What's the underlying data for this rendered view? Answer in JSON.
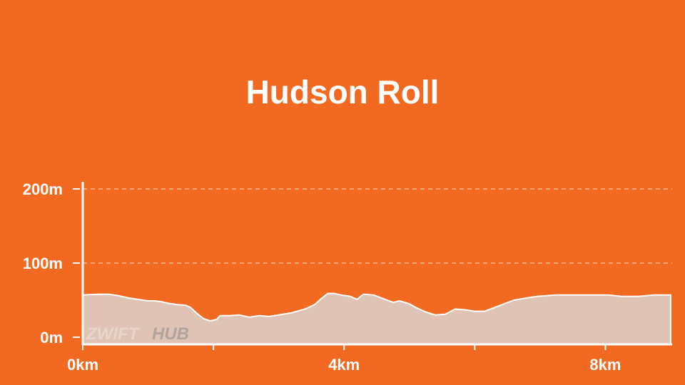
{
  "chart_data": {
    "type": "area",
    "title": "Hudson Roll",
    "xlabel": "",
    "ylabel": "",
    "x_unit": "km",
    "y_unit": "m",
    "xlim": [
      0,
      9.0
    ],
    "ylim": [
      0,
      220
    ],
    "x_ticks": [
      0,
      2,
      4,
      6,
      8
    ],
    "x_tick_labels": [
      "0km",
      "",
      "4km",
      "",
      "8km"
    ],
    "y_ticks": [
      0,
      100,
      200
    ],
    "y_tick_labels": [
      "0m",
      "100m",
      "200m"
    ],
    "grid": true,
    "legend": "none",
    "series": [
      {
        "points": [
          [
            0.0,
            57
          ],
          [
            0.25,
            58
          ],
          [
            0.4,
            58
          ],
          [
            0.55,
            56
          ],
          [
            0.7,
            53
          ],
          [
            0.85,
            51
          ],
          [
            1.0,
            49
          ],
          [
            1.1,
            49
          ],
          [
            1.2,
            48
          ],
          [
            1.3,
            46
          ],
          [
            1.45,
            44
          ],
          [
            1.58,
            43
          ],
          [
            1.65,
            40
          ],
          [
            1.75,
            32
          ],
          [
            1.85,
            25
          ],
          [
            1.95,
            22
          ],
          [
            2.05,
            24
          ],
          [
            2.1,
            29
          ],
          [
            2.25,
            29
          ],
          [
            2.4,
            30
          ],
          [
            2.55,
            27
          ],
          [
            2.7,
            29
          ],
          [
            2.85,
            28
          ],
          [
            3.0,
            30
          ],
          [
            3.2,
            33
          ],
          [
            3.4,
            38
          ],
          [
            3.55,
            44
          ],
          [
            3.65,
            52
          ],
          [
            3.75,
            59
          ],
          [
            3.85,
            59
          ],
          [
            3.95,
            57
          ],
          [
            4.1,
            55
          ],
          [
            4.2,
            51
          ],
          [
            4.25,
            55
          ],
          [
            4.3,
            58
          ],
          [
            4.45,
            57
          ],
          [
            4.6,
            52
          ],
          [
            4.75,
            47
          ],
          [
            4.85,
            49
          ],
          [
            5.0,
            45
          ],
          [
            5.1,
            40
          ],
          [
            5.25,
            34
          ],
          [
            5.4,
            30
          ],
          [
            5.55,
            31
          ],
          [
            5.7,
            38
          ],
          [
            5.85,
            37
          ],
          [
            6.0,
            35
          ],
          [
            6.15,
            35
          ],
          [
            6.3,
            40
          ],
          [
            6.45,
            45
          ],
          [
            6.6,
            50
          ],
          [
            6.8,
            53
          ],
          [
            6.95,
            55
          ],
          [
            7.1,
            56
          ],
          [
            7.25,
            57
          ],
          [
            7.5,
            57
          ],
          [
            7.8,
            57
          ],
          [
            8.05,
            57
          ],
          [
            8.25,
            55
          ],
          [
            8.5,
            55
          ],
          [
            8.75,
            57
          ],
          [
            9.0,
            57
          ]
        ]
      }
    ]
  },
  "watermark": {
    "part1": "ZWIFT",
    "part2": "HUB"
  },
  "colors": {
    "background": "#f26a21",
    "area_fill": "#dfc4b6",
    "area_line": "#ffffff",
    "axis": "#ffffff",
    "grid": "#f9c4a4"
  }
}
